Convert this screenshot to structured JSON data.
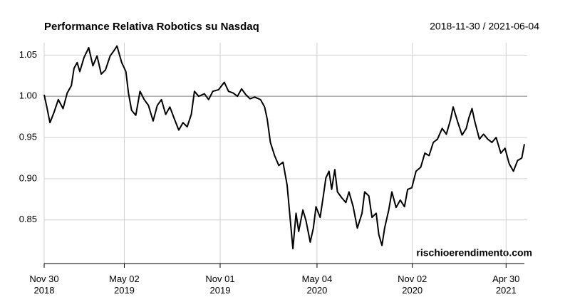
{
  "chart_data": {
    "type": "line",
    "title": "Performance Relativa Robotics su Nasdaq",
    "subtitle": "2018-11-30 / 2021-06-04",
    "annotation": "rischioerendimento.com",
    "x": [
      "2018-11-30",
      "2018-12-05",
      "2018-12-11",
      "2018-12-19",
      "2018-12-27",
      "2019-01-05",
      "2019-01-13",
      "2019-01-21",
      "2019-01-26",
      "2019-02-01",
      "2019-02-06",
      "2019-02-14",
      "2019-02-23",
      "2019-03-03",
      "2019-03-11",
      "2019-03-19",
      "2019-03-27",
      "2019-04-05",
      "2019-04-13",
      "2019-04-18",
      "2019-04-27",
      "2019-05-05",
      "2019-05-10",
      "2019-05-16",
      "2019-05-24",
      "2019-06-01",
      "2019-06-09",
      "2019-06-17",
      "2019-06-26",
      "2019-07-04",
      "2019-07-12",
      "2019-07-20",
      "2019-07-28",
      "2019-08-06",
      "2019-08-14",
      "2019-08-22",
      "2019-08-30",
      "2019-09-07",
      "2019-09-13",
      "2019-09-21",
      "2019-10-02",
      "2019-10-10",
      "2019-10-18",
      "2019-10-29",
      "2019-11-09",
      "2019-11-17",
      "2019-11-26",
      "2019-12-04",
      "2019-12-12",
      "2019-12-20",
      "2019-12-28",
      "2020-01-06",
      "2020-01-17",
      "2020-01-25",
      "2020-01-30",
      "2020-02-05",
      "2020-02-13",
      "2020-02-21",
      "2020-02-29",
      "2020-03-08",
      "2020-03-14",
      "2020-03-19",
      "2020-03-25",
      "2020-03-30",
      "2020-04-07",
      "2020-04-13",
      "2020-04-21",
      "2020-04-27",
      "2020-05-02",
      "2020-05-10",
      "2020-05-16",
      "2020-05-21",
      "2020-05-27",
      "2020-06-01",
      "2020-06-07",
      "2020-06-12",
      "2020-06-20",
      "2020-06-28",
      "2020-07-04",
      "2020-07-12",
      "2020-07-20",
      "2020-07-29",
      "2020-08-03",
      "2020-08-11",
      "2020-08-17",
      "2020-08-25",
      "2020-08-30",
      "2020-09-05",
      "2020-09-10",
      "2020-09-18",
      "2020-09-24",
      "2020-10-02",
      "2020-10-10",
      "2020-10-18",
      "2020-10-24",
      "2020-11-01",
      "2020-11-09",
      "2020-11-18",
      "2020-11-26",
      "2020-12-04",
      "2020-12-12",
      "2020-12-20",
      "2020-12-29",
      "2021-01-06",
      "2021-01-14",
      "2021-01-19",
      "2021-01-28",
      "2021-02-05",
      "2021-02-13",
      "2021-02-18",
      "2021-02-24",
      "2021-03-01",
      "2021-03-10",
      "2021-03-18",
      "2021-03-26",
      "2021-04-03",
      "2021-04-11",
      "2021-04-20",
      "2021-04-28",
      "2021-05-06",
      "2021-05-14",
      "2021-05-22",
      "2021-05-30",
      "2021-06-04"
    ],
    "series": [
      {
        "color": "#000000",
        "values": [
          1.002,
          0.987,
          0.968,
          0.981,
          0.996,
          0.985,
          1.004,
          1.013,
          1.034,
          1.041,
          1.03,
          1.047,
          1.059,
          1.037,
          1.049,
          1.027,
          1.032,
          1.049,
          1.056,
          1.061,
          1.041,
          1.03,
          1.004,
          0.983,
          0.977,
          1.006,
          0.996,
          0.989,
          0.97,
          0.989,
          0.996,
          0.978,
          0.987,
          0.972,
          0.959,
          0.968,
          0.963,
          0.978,
          1.006,
          1.0,
          1.003,
          0.996,
          1.006,
          1.008,
          1.017,
          1.006,
          1.004,
          1.0,
          1.009,
          1.002,
          0.997,
          0.999,
          0.996,
          0.987,
          0.972,
          0.944,
          0.928,
          0.916,
          0.92,
          0.892,
          0.849,
          0.815,
          0.858,
          0.836,
          0.862,
          0.849,
          0.823,
          0.84,
          0.866,
          0.853,
          0.879,
          0.901,
          0.909,
          0.887,
          0.911,
          0.884,
          0.877,
          0.871,
          0.884,
          0.866,
          0.84,
          0.858,
          0.884,
          0.879,
          0.853,
          0.858,
          0.832,
          0.819,
          0.84,
          0.862,
          0.884,
          0.865,
          0.874,
          0.866,
          0.887,
          0.889,
          0.909,
          0.914,
          0.931,
          0.928,
          0.944,
          0.948,
          0.961,
          0.954,
          0.972,
          0.987,
          0.968,
          0.953,
          0.961,
          0.974,
          0.985,
          0.97,
          0.948,
          0.954,
          0.948,
          0.944,
          0.95,
          0.931,
          0.937,
          0.918,
          0.909,
          0.922,
          0.925,
          0.942
        ]
      }
    ],
    "xlim": [
      "2018-11-30",
      "2021-06-04"
    ],
    "xticks": [
      {
        "value": "2018-11-30",
        "label": "Nov 30\n2018"
      },
      {
        "value": "2019-05-02",
        "label": "May 02\n2019"
      },
      {
        "value": "2019-11-01",
        "label": "Nov 01\n2019"
      },
      {
        "value": "2020-05-04",
        "label": "May 04\n2020"
      },
      {
        "value": "2020-11-02",
        "label": "Nov 02\n2020"
      },
      {
        "value": "2021-04-30",
        "label": "Apr 30\n2021"
      }
    ],
    "ylim": [
      0.797,
      1.065
    ],
    "yticks": [
      {
        "value": 0.85,
        "label": "0.85"
      },
      {
        "value": 0.9,
        "label": "0.90"
      },
      {
        "value": 0.95,
        "label": "0.95"
      },
      {
        "value": 1,
        "label": "1.00"
      },
      {
        "value": 1.05,
        "label": "1.05"
      }
    ],
    "hline": 1,
    "grid": true
  }
}
